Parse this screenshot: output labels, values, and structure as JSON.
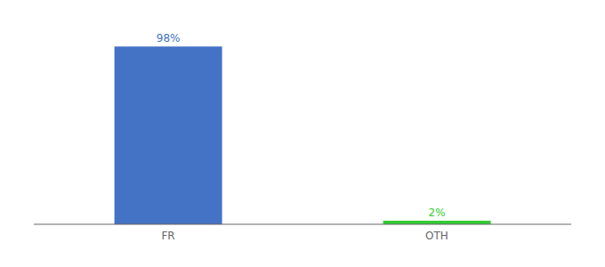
{
  "chart_data": {
    "type": "bar",
    "categories": [
      "FR",
      "OTH"
    ],
    "values": [
      98,
      2
    ],
    "value_labels": [
      "98%",
      "2%"
    ],
    "colors": [
      "#4472C4",
      "#33CC33"
    ],
    "ylim": [
      0,
      108
    ],
    "data_labels": true,
    "grid": false,
    "tick_labels": "x"
  }
}
